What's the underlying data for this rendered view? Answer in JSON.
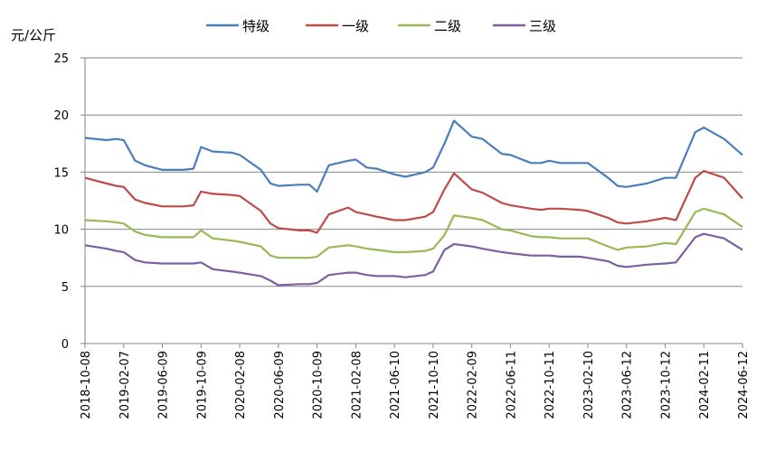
{
  "chart_data": {
    "type": "line",
    "ylabel": "元/公斤",
    "ylim": [
      0,
      25
    ],
    "yticks": [
      0,
      5,
      10,
      15,
      20,
      25
    ],
    "xticks": [
      "2018-10-08",
      "2019-02-07",
      "2019-06-09",
      "2019-10-09",
      "2020-02-08",
      "2020-06-09",
      "2020-10-09",
      "2021-02-08",
      "2021-06-10",
      "2021-10-10",
      "2022-02-09",
      "2022-06-11",
      "2022-10-11",
      "2023-02-10",
      "2023-06-12",
      "2023-10-12",
      "2024-02-11",
      "2024-06-12"
    ],
    "x": [
      "2018-10-08",
      "2018-12",
      "2019-01",
      "2019-02-07",
      "2019-03",
      "2019-04",
      "2019-06-09",
      "2019-08",
      "2019-09",
      "2019-10-09",
      "2019-11",
      "2020-01",
      "2020-02-08",
      "2020-04",
      "2020-05",
      "2020-06-09",
      "2020-08",
      "2020-09",
      "2020-10-09",
      "2020-11",
      "2021-01",
      "2021-02-08",
      "2021-03",
      "2021-04",
      "2021-06-10",
      "2021-07",
      "2021-09",
      "2021-10-10",
      "2021-11",
      "2021-12",
      "2022-02-09",
      "2022-03",
      "2022-05",
      "2022-06-11",
      "2022-08",
      "2022-09",
      "2022-10-11",
      "2022-11",
      "2023-01",
      "2023-02-10",
      "2023-04",
      "2023-05",
      "2023-06-12",
      "2023-08",
      "2023-10-12",
      "2023-11",
      "2024-01",
      "2024-02-11",
      "2024-04",
      "2024-06-12"
    ],
    "series": [
      {
        "name": "特级",
        "color": "#4A7EBB",
        "values": [
          18.0,
          17.8,
          17.9,
          17.8,
          16.0,
          15.6,
          15.2,
          15.2,
          15.3,
          17.2,
          16.8,
          16.7,
          16.5,
          15.2,
          14.0,
          13.8,
          13.9,
          13.9,
          13.3,
          15.6,
          16.0,
          16.1,
          15.4,
          15.3,
          14.8,
          14.6,
          15.0,
          15.4,
          17.5,
          19.5,
          18.1,
          17.9,
          16.6,
          16.5,
          15.8,
          15.8,
          16.0,
          15.8,
          15.8,
          15.8,
          14.5,
          13.8,
          13.7,
          14.0,
          14.5,
          14.5,
          18.5,
          18.9,
          17.9,
          16.5
        ]
      },
      {
        "name": "一级",
        "color": "#BE4B48",
        "values": [
          14.5,
          14.0,
          13.8,
          13.7,
          12.6,
          12.3,
          12.0,
          12.0,
          12.1,
          13.3,
          13.1,
          13.0,
          12.9,
          11.6,
          10.5,
          10.1,
          9.9,
          9.9,
          9.7,
          11.3,
          11.9,
          11.5,
          11.3,
          11.1,
          10.8,
          10.8,
          11.1,
          11.5,
          13.5,
          14.9,
          13.5,
          13.2,
          12.3,
          12.1,
          11.8,
          11.7,
          11.8,
          11.8,
          11.7,
          11.6,
          11.0,
          10.6,
          10.5,
          10.7,
          11.0,
          10.8,
          14.5,
          15.1,
          14.5,
          12.7
        ]
      },
      {
        "name": "二级",
        "color": "#98B954",
        "values": [
          10.8,
          10.7,
          10.6,
          10.5,
          9.8,
          9.5,
          9.3,
          9.3,
          9.3,
          9.9,
          9.2,
          9.0,
          8.9,
          8.5,
          7.7,
          7.5,
          7.5,
          7.5,
          7.6,
          8.4,
          8.6,
          8.5,
          8.3,
          8.2,
          8.0,
          8.0,
          8.1,
          8.3,
          9.5,
          11.2,
          11.0,
          10.8,
          10.0,
          9.9,
          9.4,
          9.3,
          9.3,
          9.2,
          9.2,
          9.2,
          8.5,
          8.2,
          8.4,
          8.5,
          8.8,
          8.7,
          11.5,
          11.8,
          11.3,
          10.2
        ]
      },
      {
        "name": "三级",
        "color": "#7D60A0",
        "values": [
          8.6,
          8.3,
          8.1,
          8.0,
          7.3,
          7.1,
          7.0,
          7.0,
          7.0,
          7.1,
          6.5,
          6.3,
          6.2,
          5.9,
          5.5,
          5.1,
          5.2,
          5.2,
          5.3,
          6.0,
          6.2,
          6.2,
          6.0,
          5.9,
          5.9,
          5.8,
          6.0,
          6.3,
          8.2,
          8.7,
          8.5,
          8.3,
          8.0,
          7.9,
          7.7,
          7.7,
          7.7,
          7.6,
          7.6,
          7.5,
          7.2,
          6.8,
          6.7,
          6.9,
          7.0,
          7.1,
          9.3,
          9.6,
          9.2,
          8.2
        ]
      }
    ]
  }
}
